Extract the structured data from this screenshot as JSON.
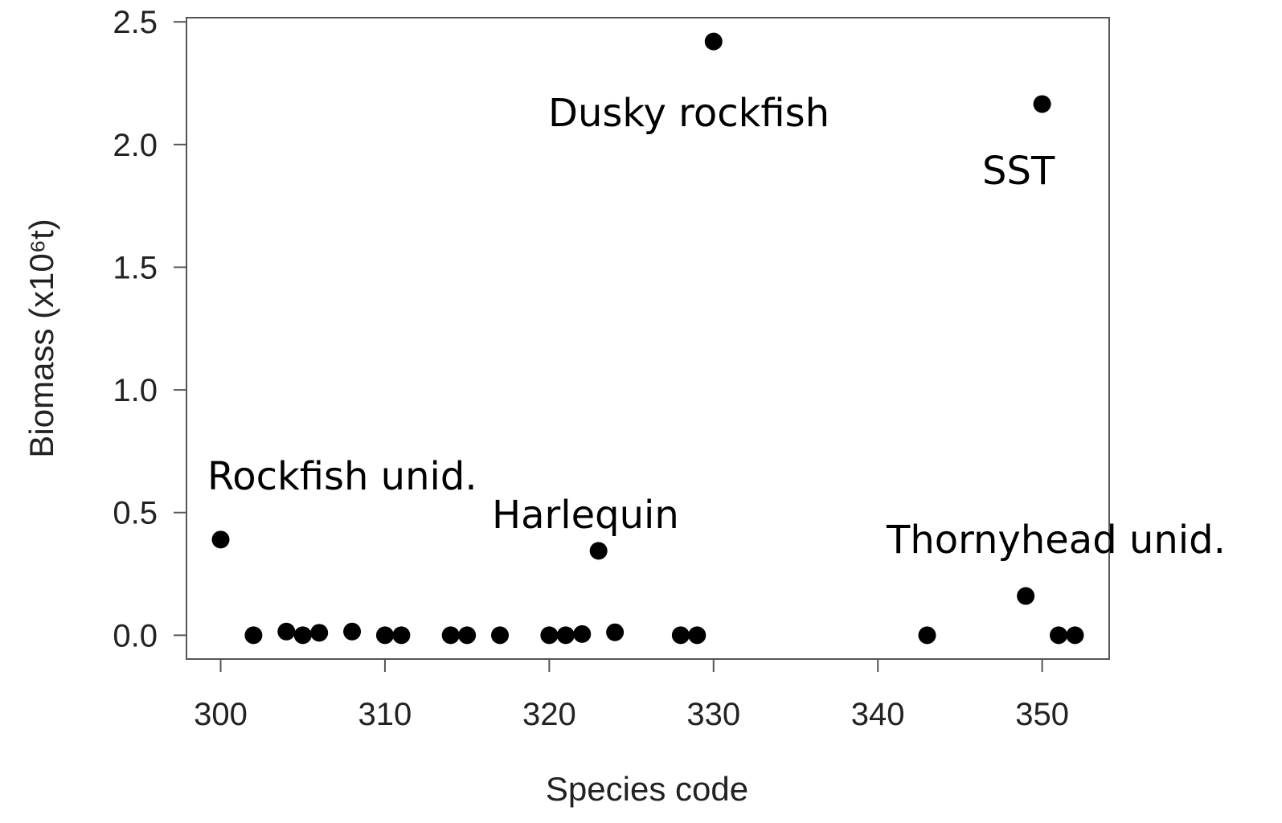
{
  "chart_data": {
    "type": "scatter",
    "xlabel": "Species code",
    "ylabel": "Biomass (x10⁶t)",
    "x": [
      300,
      302,
      304,
      305,
      306,
      308,
      310,
      311,
      314,
      315,
      317,
      320,
      321,
      322,
      323,
      324,
      328,
      329,
      330,
      343,
      349,
      350,
      351,
      352
    ],
    "values": [
      0.39,
      0,
      0.015,
      0,
      0.01,
      0.015,
      0,
      0,
      0,
      0,
      0,
      0,
      0,
      0.005,
      0.344,
      0.012,
      0,
      0,
      2.42,
      0,
      0.16,
      2.165,
      0,
      0
    ],
    "color": "#000000",
    "xlim": [
      297.92,
      354.08
    ],
    "ylim": [
      -0.097,
      2.517
    ],
    "xticks": [
      300,
      310,
      320,
      330,
      340,
      350
    ],
    "yticks": [
      {
        "value": 0,
        "label": "0.0"
      },
      0.5,
      {
        "value": 1,
        "label": "1.0"
      },
      1.5,
      {
        "value": 2,
        "label": "2.0"
      },
      2.5
    ],
    "annotations": [
      "Dusky rockfish",
      "SST",
      "Rockfish unid.",
      "Harlequin",
      "Thornyhead unid."
    ]
  }
}
